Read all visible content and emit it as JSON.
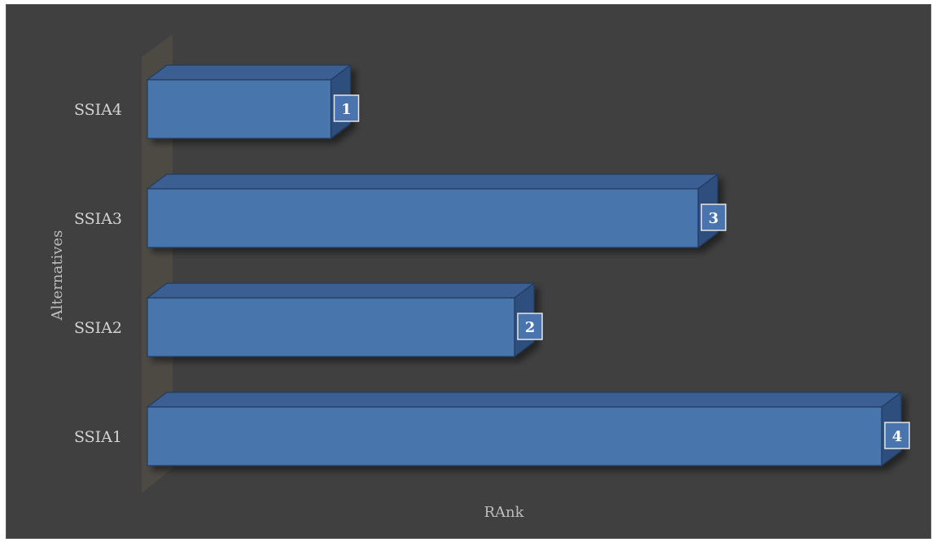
{
  "chart_data": {
    "type": "bar",
    "orientation": "horizontal",
    "style": "3d",
    "categories": [
      "SSIA1",
      "SSIA2",
      "SSIA3",
      "SSIA4"
    ],
    "values": [
      4,
      2,
      3,
      1
    ],
    "xlabel": "RAnk",
    "ylabel": "Alternatives",
    "xlim": [
      0,
      4
    ],
    "grid": false,
    "legend": "none",
    "colors": {
      "background": "#404040",
      "bar_front": "#4a74ad",
      "bar_top": "#3a5f93",
      "bar_side": "#2f4f7d",
      "bar_edge": "#223a5e",
      "wall": "#4d4a44",
      "label_box": "#4a74ad"
    }
  }
}
